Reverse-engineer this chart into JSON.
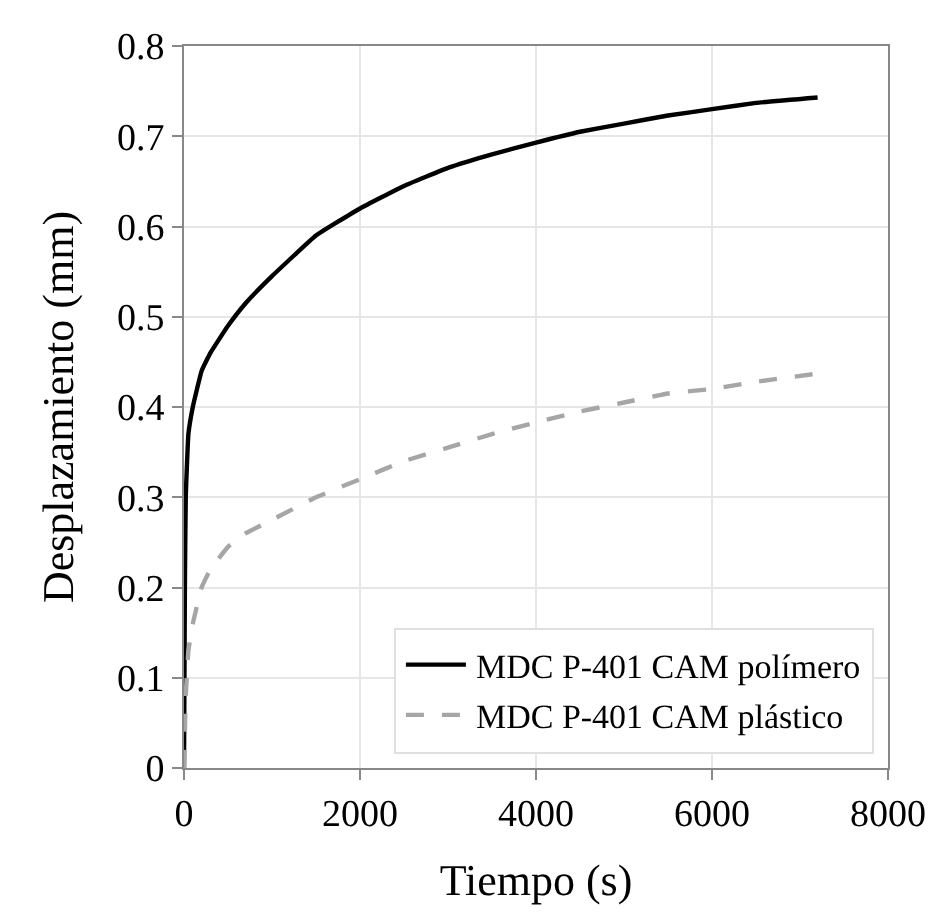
{
  "chart_data": {
    "type": "line",
    "xlabel": "Tiempo (s)",
    "ylabel": "Desplazamiento (mm)",
    "xlim": [
      0,
      8000
    ],
    "xticks": [
      0,
      2000,
      4000,
      6000,
      8000
    ],
    "ylim": [
      0,
      0.8
    ],
    "yticks": [
      0,
      0.1,
      0.2,
      0.3,
      0.4,
      0.5,
      0.6,
      0.7,
      0.8
    ],
    "grid": true,
    "legend": "bottom right",
    "series": [
      {
        "name": "MDC P-401 CAM polímero",
        "color": "#000000",
        "line_style": "solid",
        "x": [
          0,
          10,
          20,
          50,
          100,
          200,
          300,
          500,
          700,
          1000,
          1500,
          2000,
          2500,
          3000,
          3500,
          4000,
          4500,
          5000,
          5500,
          6000,
          6500,
          7200
        ],
        "values": [
          0,
          0.2,
          0.3,
          0.37,
          0.4,
          0.44,
          0.46,
          0.49,
          0.515,
          0.545,
          0.59,
          0.62,
          0.645,
          0.665,
          0.68,
          0.693,
          0.705,
          0.714,
          0.723,
          0.73,
          0.737,
          0.743
        ]
      },
      {
        "name": "MDC P-401 CAM plástico",
        "color": "#a6a6a6",
        "line_style": "dashed",
        "x": [
          0,
          20,
          50,
          100,
          200,
          300,
          500,
          700,
          1000,
          1500,
          2000,
          2500,
          3000,
          3500,
          4000,
          4500,
          5000,
          5500,
          6000,
          6500,
          7200
        ],
        "values": [
          0,
          0.08,
          0.13,
          0.16,
          0.2,
          0.22,
          0.245,
          0.26,
          0.275,
          0.3,
          0.32,
          0.34,
          0.355,
          0.37,
          0.383,
          0.395,
          0.405,
          0.415,
          0.42,
          0.428,
          0.437
        ]
      }
    ]
  }
}
